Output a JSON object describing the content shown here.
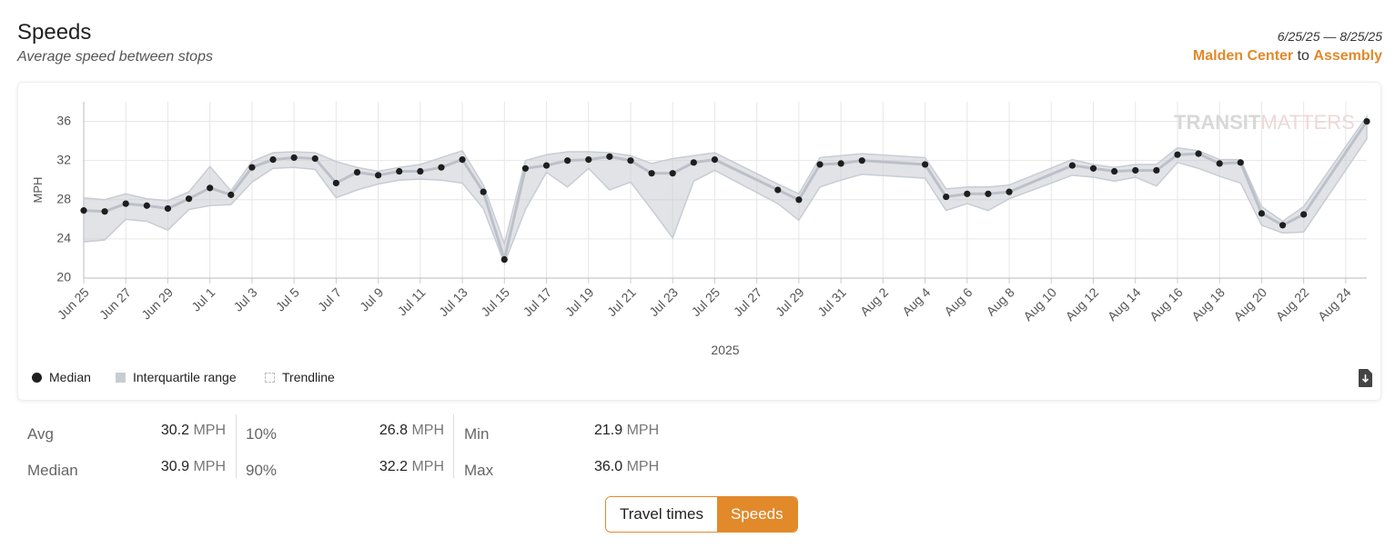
{
  "header": {
    "title": "Speeds",
    "subtitle": "Average speed between stops",
    "date_range": "6/25/25 — 8/25/25",
    "from": "Malden Center",
    "connector": "to",
    "to": "Assembly"
  },
  "watermark": {
    "bold": "TRANSIT",
    "light": "MATTERS"
  },
  "chart_data": {
    "type": "line",
    "ylabel": "MPH",
    "xlabel": "2025",
    "x": [
      "2025-06-25",
      "2025-06-26",
      "2025-06-27",
      "2025-06-28",
      "2025-06-29",
      "2025-06-30",
      "2025-07-01",
      "2025-07-02",
      "2025-07-03",
      "2025-07-04",
      "2025-07-05",
      "2025-07-06",
      "2025-07-07",
      "2025-07-08",
      "2025-07-09",
      "2025-07-10",
      "2025-07-11",
      "2025-07-12",
      "2025-07-13",
      "2025-07-14",
      "2025-07-15",
      "2025-07-16",
      "2025-07-17",
      "2025-07-18",
      "2025-07-19",
      "2025-07-20",
      "2025-07-21",
      "2025-07-22",
      "2025-07-23",
      "2025-07-24",
      "2025-07-25",
      "2025-07-28",
      "2025-07-29",
      "2025-07-30",
      "2025-07-31",
      "2025-08-01",
      "2025-08-04",
      "2025-08-05",
      "2025-08-06",
      "2025-08-07",
      "2025-08-08",
      "2025-08-11",
      "2025-08-12",
      "2025-08-13",
      "2025-08-14",
      "2025-08-15",
      "2025-08-16",
      "2025-08-17",
      "2025-08-18",
      "2025-08-19",
      "2025-08-20",
      "2025-08-21",
      "2025-08-22",
      "2025-08-25"
    ],
    "series": [
      {
        "name": "Median",
        "color": "#1e1e1e",
        "line_color": "#bcc0c8",
        "values": [
          26.9,
          26.8,
          27.6,
          27.4,
          27.1,
          28.1,
          29.2,
          28.5,
          31.3,
          32.1,
          32.3,
          32.2,
          29.7,
          30.8,
          30.5,
          30.9,
          30.9,
          31.3,
          32.1,
          28.8,
          21.9,
          31.2,
          31.5,
          32.0,
          32.1,
          32.4,
          32.0,
          30.7,
          30.7,
          31.8,
          32.1,
          29.0,
          28.0,
          31.6,
          31.7,
          32.0,
          31.6,
          28.3,
          28.6,
          28.6,
          28.8,
          31.5,
          31.2,
          30.9,
          31.0,
          31.0,
          32.6,
          32.7,
          31.7,
          31.8,
          26.6,
          25.4,
          26.5,
          36.0
        ]
      },
      {
        "name": "Interquartile range",
        "color": "#c8ccd4",
        "lower": [
          23.7,
          23.9,
          26.0,
          25.8,
          24.9,
          27.0,
          27.4,
          27.5,
          29.8,
          31.2,
          31.3,
          31.1,
          28.2,
          29.0,
          29.6,
          30.0,
          30.1,
          30.0,
          29.7,
          27.1,
          21.5,
          27.0,
          30.8,
          29.3,
          31.2,
          29.0,
          29.8,
          27.0,
          24.1,
          29.9,
          31.0,
          27.6,
          25.9,
          29.3,
          30.0,
          30.6,
          30.2,
          26.9,
          27.6,
          26.9,
          28.1,
          30.5,
          30.3,
          29.9,
          30.3,
          29.4,
          31.8,
          31.2,
          30.4,
          29.7,
          25.4,
          24.6,
          24.7,
          34.2
        ],
        "upper": [
          28.2,
          28.0,
          28.6,
          28.1,
          27.9,
          28.8,
          31.4,
          28.9,
          31.9,
          32.8,
          32.9,
          32.8,
          31.9,
          31.3,
          30.9,
          31.3,
          31.6,
          32.3,
          33.0,
          29.5,
          23.5,
          32.0,
          32.6,
          32.9,
          32.9,
          32.8,
          32.5,
          31.7,
          32.2,
          32.5,
          32.8,
          29.6,
          28.6,
          32.3,
          32.5,
          32.7,
          32.3,
          29.1,
          29.3,
          29.3,
          29.5,
          32.1,
          31.6,
          31.3,
          31.6,
          31.6,
          33.3,
          33.0,
          32.1,
          32.1,
          27.3,
          25.8,
          27.3,
          36.5
        ]
      },
      {
        "name": "Trendline",
        "color": "#bbbbbb",
        "hidden": true
      }
    ],
    "xlim": [
      "2025-06-25",
      "2025-08-25"
    ],
    "xticks": [
      {
        "value": "2025-06-25",
        "label": "Jun 25"
      },
      {
        "value": "2025-06-27",
        "label": "Jun 27"
      },
      {
        "value": "2025-06-29",
        "label": "Jun 29"
      },
      {
        "value": "2025-07-01",
        "label": "Jul 1"
      },
      {
        "value": "2025-07-03",
        "label": "Jul 3"
      },
      {
        "value": "2025-07-05",
        "label": "Jul 5"
      },
      {
        "value": "2025-07-07",
        "label": "Jul 7"
      },
      {
        "value": "2025-07-09",
        "label": "Jul 9"
      },
      {
        "value": "2025-07-11",
        "label": "Jul 11"
      },
      {
        "value": "2025-07-13",
        "label": "Jul 13"
      },
      {
        "value": "2025-07-15",
        "label": "Jul 15"
      },
      {
        "value": "2025-07-17",
        "label": "Jul 17"
      },
      {
        "value": "2025-07-19",
        "label": "Jul 19"
      },
      {
        "value": "2025-07-21",
        "label": "Jul 21"
      },
      {
        "value": "2025-07-23",
        "label": "Jul 23"
      },
      {
        "value": "2025-07-25",
        "label": "Jul 25"
      },
      {
        "value": "2025-07-27",
        "label": "Jul 27"
      },
      {
        "value": "2025-07-29",
        "label": "Jul 29"
      },
      {
        "value": "2025-07-31",
        "label": "Jul 31"
      },
      {
        "value": "2025-08-02",
        "label": "Aug 2"
      },
      {
        "value": "2025-08-04",
        "label": "Aug 4"
      },
      {
        "value": "2025-08-06",
        "label": "Aug 6"
      },
      {
        "value": "2025-08-08",
        "label": "Aug 8"
      },
      {
        "value": "2025-08-10",
        "label": "Aug 10"
      },
      {
        "value": "2025-08-12",
        "label": "Aug 12"
      },
      {
        "value": "2025-08-14",
        "label": "Aug 14"
      },
      {
        "value": "2025-08-16",
        "label": "Aug 16"
      },
      {
        "value": "2025-08-18",
        "label": "Aug 18"
      },
      {
        "value": "2025-08-20",
        "label": "Aug 20"
      },
      {
        "value": "2025-08-22",
        "label": "Aug 22"
      },
      {
        "value": "2025-08-24",
        "label": "Aug 24"
      }
    ],
    "ylim": [
      20,
      38
    ],
    "yticks": [
      20,
      24,
      28,
      32,
      36
    ],
    "grid": true
  },
  "stats": [
    {
      "label": "Avg",
      "value": "30.2",
      "unit": "MPH"
    },
    {
      "label": "Median",
      "value": "30.9",
      "unit": "MPH"
    },
    {
      "label": "10%",
      "value": "26.8",
      "unit": "MPH"
    },
    {
      "label": "90%",
      "value": "32.2",
      "unit": "MPH"
    },
    {
      "label": "Min",
      "value": "21.9",
      "unit": "MPH"
    },
    {
      "label": "Max",
      "value": "36.0",
      "unit": "MPH"
    }
  ],
  "toggle": {
    "options": [
      "Travel times",
      "Speeds"
    ],
    "active": 1
  }
}
